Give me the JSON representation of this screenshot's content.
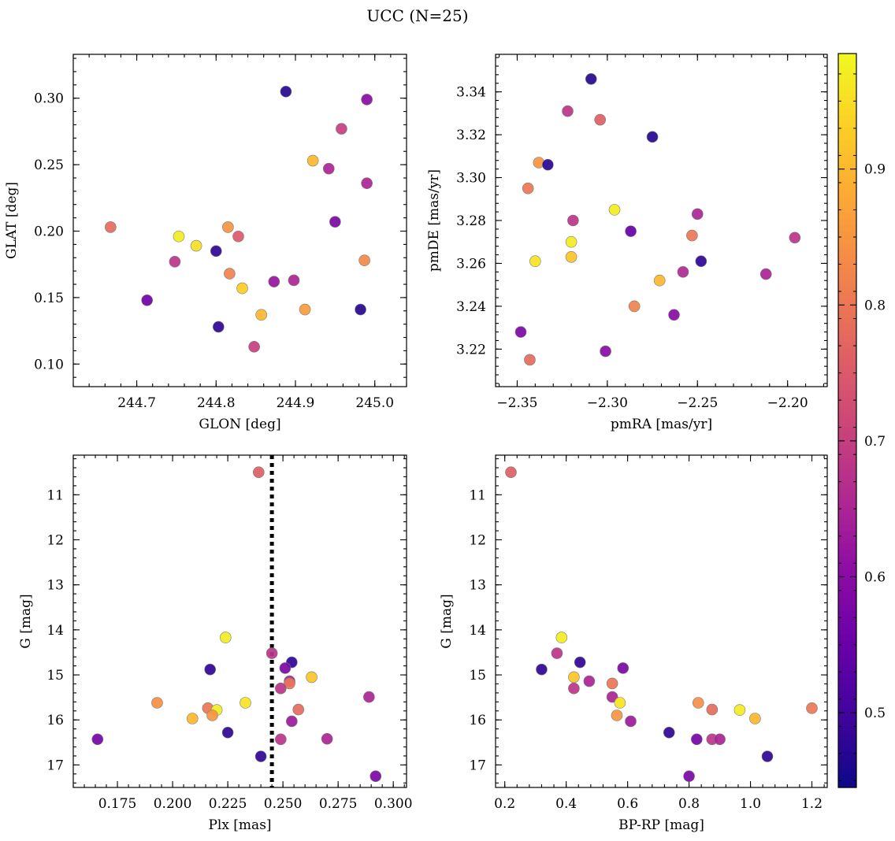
{
  "figure": {
    "title": "UCC (N=25)"
  },
  "colorbar": {
    "cmap": "plasma",
    "range": [
      0.445,
      0.985
    ],
    "ticks": [
      0.5,
      0.6,
      0.7,
      0.8,
      0.9
    ],
    "tick_labels": [
      "0.5",
      "0.6",
      "0.7",
      "0.8",
      "0.9"
    ]
  },
  "chart_data": [
    {
      "type": "scatter",
      "xlabel": "GLON [deg]",
      "ylabel": "GLAT [deg]",
      "xlim": [
        244.62,
        245.04
      ],
      "ylim": [
        0.083,
        0.333
      ],
      "xticks": [
        244.7,
        244.8,
        244.9,
        245.0
      ],
      "xtick_labels": [
        "244.7",
        "244.8",
        "244.9",
        "245.0"
      ],
      "yticks": [
        0.1,
        0.15,
        0.2,
        0.25,
        0.3
      ],
      "ytick_labels": [
        "0.10",
        "0.15",
        "0.20",
        "0.25",
        "0.30"
      ],
      "y_inverted": false,
      "points": [
        {
          "x": 244.888,
          "y": 0.305,
          "c": 0.47
        },
        {
          "x": 244.99,
          "y": 0.299,
          "c": 0.6
        },
        {
          "x": 244.958,
          "y": 0.277,
          "c": 0.7
        },
        {
          "x": 244.922,
          "y": 0.253,
          "c": 0.9
        },
        {
          "x": 244.942,
          "y": 0.247,
          "c": 0.65
        },
        {
          "x": 244.99,
          "y": 0.236,
          "c": 0.65
        },
        {
          "x": 244.95,
          "y": 0.207,
          "c": 0.58
        },
        {
          "x": 244.667,
          "y": 0.203,
          "c": 0.78
        },
        {
          "x": 244.815,
          "y": 0.203,
          "c": 0.85
        },
        {
          "x": 244.828,
          "y": 0.196,
          "c": 0.75
        },
        {
          "x": 244.753,
          "y": 0.196,
          "c": 0.97
        },
        {
          "x": 244.775,
          "y": 0.189,
          "c": 0.95
        },
        {
          "x": 244.8,
          "y": 0.185,
          "c": 0.48
        },
        {
          "x": 244.748,
          "y": 0.177,
          "c": 0.68
        },
        {
          "x": 244.987,
          "y": 0.178,
          "c": 0.83
        },
        {
          "x": 244.817,
          "y": 0.168,
          "c": 0.82
        },
        {
          "x": 244.873,
          "y": 0.162,
          "c": 0.62
        },
        {
          "x": 244.898,
          "y": 0.163,
          "c": 0.65
        },
        {
          "x": 244.833,
          "y": 0.157,
          "c": 0.93
        },
        {
          "x": 244.713,
          "y": 0.148,
          "c": 0.56
        },
        {
          "x": 244.912,
          "y": 0.141,
          "c": 0.86
        },
        {
          "x": 244.982,
          "y": 0.141,
          "c": 0.47
        },
        {
          "x": 244.857,
          "y": 0.137,
          "c": 0.9
        },
        {
          "x": 244.803,
          "y": 0.128,
          "c": 0.48
        },
        {
          "x": 244.848,
          "y": 0.113,
          "c": 0.7
        }
      ]
    },
    {
      "type": "scatter",
      "xlabel": "pmRA [mas/yr]",
      "ylabel": "pmDE [mas/yr]",
      "xlim": [
        -2.362,
        -2.178
      ],
      "ylim": [
        3.2025,
        3.3575
      ],
      "xticks": [
        -2.35,
        -2.3,
        -2.25,
        -2.2
      ],
      "xtick_labels": [
        "−2.35",
        "−2.30",
        "−2.25",
        "−2.20"
      ],
      "yticks": [
        3.22,
        3.24,
        3.26,
        3.28,
        3.3,
        3.32,
        3.34
      ],
      "ytick_labels": [
        "3.22",
        "3.24",
        "3.26",
        "3.28",
        "3.30",
        "3.32",
        "3.34"
      ],
      "y_inverted": false,
      "points": [
        {
          "x": -2.309,
          "y": 3.346,
          "c": 0.47
        },
        {
          "x": -2.322,
          "y": 3.331,
          "c": 0.68
        },
        {
          "x": -2.304,
          "y": 3.327,
          "c": 0.76
        },
        {
          "x": -2.275,
          "y": 3.319,
          "c": 0.47
        },
        {
          "x": -2.338,
          "y": 3.307,
          "c": 0.85
        },
        {
          "x": -2.333,
          "y": 3.306,
          "c": 0.47
        },
        {
          "x": -2.344,
          "y": 3.295,
          "c": 0.8
        },
        {
          "x": -2.296,
          "y": 3.285,
          "c": 0.97
        },
        {
          "x": -2.25,
          "y": 3.283,
          "c": 0.65
        },
        {
          "x": -2.319,
          "y": 3.28,
          "c": 0.68
        },
        {
          "x": -2.287,
          "y": 3.275,
          "c": 0.55
        },
        {
          "x": -2.253,
          "y": 3.273,
          "c": 0.8
        },
        {
          "x": -2.196,
          "y": 3.272,
          "c": 0.68
        },
        {
          "x": -2.32,
          "y": 3.27,
          "c": 0.97
        },
        {
          "x": -2.32,
          "y": 3.263,
          "c": 0.92
        },
        {
          "x": -2.34,
          "y": 3.261,
          "c": 0.96
        },
        {
          "x": -2.248,
          "y": 3.261,
          "c": 0.48
        },
        {
          "x": -2.258,
          "y": 3.256,
          "c": 0.66
        },
        {
          "x": -2.212,
          "y": 3.255,
          "c": 0.65
        },
        {
          "x": -2.271,
          "y": 3.252,
          "c": 0.9
        },
        {
          "x": -2.285,
          "y": 3.24,
          "c": 0.82
        },
        {
          "x": -2.263,
          "y": 3.236,
          "c": 0.6
        },
        {
          "x": -2.348,
          "y": 3.228,
          "c": 0.58
        },
        {
          "x": -2.301,
          "y": 3.219,
          "c": 0.6
        },
        {
          "x": -2.343,
          "y": 3.215,
          "c": 0.78
        }
      ]
    },
    {
      "type": "scatter",
      "xlabel": "Plx [mas]",
      "ylabel": "G [mag]",
      "xlim": [
        0.155,
        0.306
      ],
      "ylim": [
        10.12,
        17.5
      ],
      "xticks": [
        0.175,
        0.2,
        0.225,
        0.25,
        0.275,
        0.3
      ],
      "xtick_labels": [
        "0.175",
        "0.200",
        "0.225",
        "0.250",
        "0.275",
        "0.300"
      ],
      "yticks": [
        11,
        12,
        13,
        14,
        15,
        16,
        17
      ],
      "ytick_labels": [
        "11",
        "12",
        "13",
        "14",
        "15",
        "16",
        "17"
      ],
      "y_inverted": true,
      "vline": 0.245,
      "points": [
        {
          "x": 0.239,
          "y": 10.5,
          "c": 0.76
        },
        {
          "x": 0.224,
          "y": 14.17,
          "c": 0.97
        },
        {
          "x": 0.245,
          "y": 14.52,
          "c": 0.68
        },
        {
          "x": 0.254,
          "y": 14.72,
          "c": 0.48
        },
        {
          "x": 0.251,
          "y": 14.85,
          "c": 0.58
        },
        {
          "x": 0.217,
          "y": 14.88,
          "c": 0.48
        },
        {
          "x": 0.263,
          "y": 15.05,
          "c": 0.92
        },
        {
          "x": 0.253,
          "y": 15.14,
          "c": 0.65
        },
        {
          "x": 0.253,
          "y": 15.19,
          "c": 0.8
        },
        {
          "x": 0.249,
          "y": 15.3,
          "c": 0.68
        },
        {
          "x": 0.289,
          "y": 15.49,
          "c": 0.65
        },
        {
          "x": 0.193,
          "y": 15.62,
          "c": 0.84
        },
        {
          "x": 0.233,
          "y": 15.62,
          "c": 0.96
        },
        {
          "x": 0.216,
          "y": 15.74,
          "c": 0.8
        },
        {
          "x": 0.257,
          "y": 15.77,
          "c": 0.78
        },
        {
          "x": 0.22,
          "y": 15.78,
          "c": 0.97
        },
        {
          "x": 0.218,
          "y": 15.9,
          "c": 0.85
        },
        {
          "x": 0.209,
          "y": 15.97,
          "c": 0.9
        },
        {
          "x": 0.254,
          "y": 16.03,
          "c": 0.63
        },
        {
          "x": 0.225,
          "y": 16.28,
          "c": 0.48
        },
        {
          "x": 0.166,
          "y": 16.43,
          "c": 0.57
        },
        {
          "x": 0.249,
          "y": 16.43,
          "c": 0.68
        },
        {
          "x": 0.27,
          "y": 16.42,
          "c": 0.65
        },
        {
          "x": 0.24,
          "y": 16.81,
          "c": 0.48
        },
        {
          "x": 0.292,
          "y": 17.25,
          "c": 0.58
        }
      ]
    },
    {
      "type": "scatter",
      "xlabel": "BP-RP [mag]",
      "ylabel": "G [mag]",
      "xlim": [
        0.17,
        1.25
      ],
      "ylim": [
        10.12,
        17.5
      ],
      "xticks": [
        0.2,
        0.4,
        0.6,
        0.8,
        1.0,
        1.2
      ],
      "xtick_labels": [
        "0.2",
        "0.4",
        "0.6",
        "0.8",
        "1.0",
        "1.2"
      ],
      "yticks": [
        11,
        12,
        13,
        14,
        15,
        16,
        17
      ],
      "ytick_labels": [
        "11",
        "12",
        "13",
        "14",
        "15",
        "16",
        "17"
      ],
      "y_inverted": true,
      "points": [
        {
          "x": 0.22,
          "y": 10.5,
          "c": 0.76
        },
        {
          "x": 0.385,
          "y": 14.17,
          "c": 0.97
        },
        {
          "x": 0.37,
          "y": 14.52,
          "c": 0.68
        },
        {
          "x": 0.445,
          "y": 14.72,
          "c": 0.48
        },
        {
          "x": 0.585,
          "y": 14.85,
          "c": 0.58
        },
        {
          "x": 0.32,
          "y": 14.88,
          "c": 0.48
        },
        {
          "x": 0.425,
          "y": 15.05,
          "c": 0.92
        },
        {
          "x": 0.475,
          "y": 15.14,
          "c": 0.65
        },
        {
          "x": 0.55,
          "y": 15.19,
          "c": 0.8
        },
        {
          "x": 0.425,
          "y": 15.3,
          "c": 0.68
        },
        {
          "x": 0.55,
          "y": 15.49,
          "c": 0.65
        },
        {
          "x": 0.83,
          "y": 15.62,
          "c": 0.84
        },
        {
          "x": 0.575,
          "y": 15.62,
          "c": 0.96
        },
        {
          "x": 1.2,
          "y": 15.74,
          "c": 0.8
        },
        {
          "x": 0.875,
          "y": 15.77,
          "c": 0.78
        },
        {
          "x": 0.965,
          "y": 15.78,
          "c": 0.97
        },
        {
          "x": 0.565,
          "y": 15.9,
          "c": 0.85
        },
        {
          "x": 1.015,
          "y": 15.97,
          "c": 0.9
        },
        {
          "x": 0.61,
          "y": 16.03,
          "c": 0.63
        },
        {
          "x": 0.735,
          "y": 16.28,
          "c": 0.48
        },
        {
          "x": 0.825,
          "y": 16.43,
          "c": 0.57
        },
        {
          "x": 0.875,
          "y": 16.43,
          "c": 0.68
        },
        {
          "x": 0.9,
          "y": 16.43,
          "c": 0.65
        },
        {
          "x": 1.055,
          "y": 16.81,
          "c": 0.48
        },
        {
          "x": 0.8,
          "y": 17.25,
          "c": 0.58
        }
      ]
    }
  ]
}
